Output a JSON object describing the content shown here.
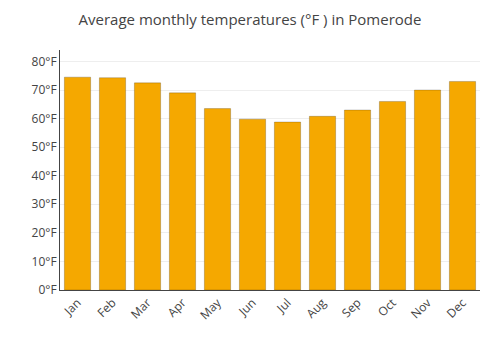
{
  "chart_data": {
    "type": "bar",
    "title": "Average monthly temperatures (°F ) in Pomerode",
    "categories": [
      "Jan",
      "Feb",
      "Mar",
      "Apr",
      "May",
      "Jun",
      "Jul",
      "Aug",
      "Sep",
      "Oct",
      "Nov",
      "Dec"
    ],
    "values": [
      74.5,
      74.3,
      72.5,
      69.0,
      63.5,
      59.8,
      58.8,
      60.8,
      63.0,
      66.0,
      70.0,
      73.0
    ],
    "color": "#F5A800",
    "ylim": [
      0,
      84
    ],
    "yticks": [
      {
        "value": 0,
        "label": "0°F"
      },
      {
        "value": 10,
        "label": "10°F"
      },
      {
        "value": 20,
        "label": "20°F"
      },
      {
        "value": 30,
        "label": "30°F"
      },
      {
        "value": 40,
        "label": "40°F"
      },
      {
        "value": 50,
        "label": "50°F"
      },
      {
        "value": 60,
        "label": "60°F"
      },
      {
        "value": 70,
        "label": "70°F"
      },
      {
        "value": 80,
        "label": "80°F"
      }
    ],
    "grid": true
  }
}
